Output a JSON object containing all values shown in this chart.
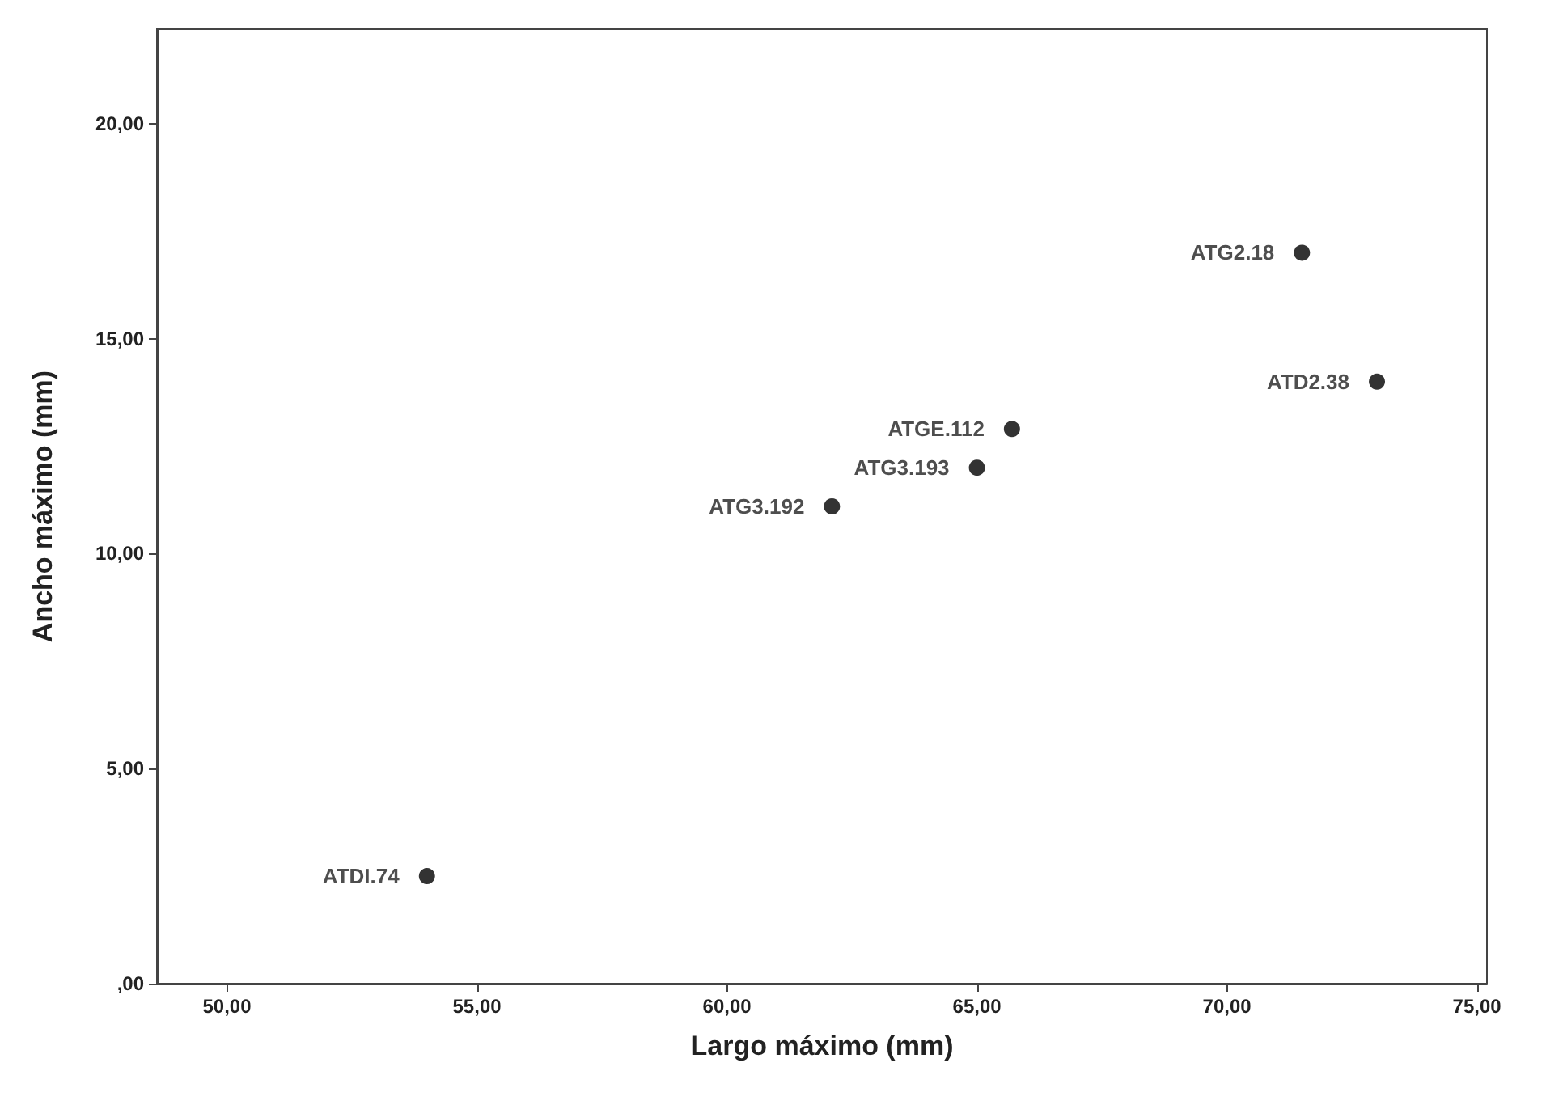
{
  "chart_data": {
    "type": "scatter",
    "xlabel": "Largo máximo (mm)",
    "ylabel": "Ancho máximo (mm)",
    "x": [
      54.0,
      62.1,
      65.0,
      65.7,
      71.5,
      73.0
    ],
    "values": [
      2.5,
      11.1,
      12.0,
      12.9,
      17.0,
      14.0
    ],
    "color": "#000000",
    "marker": "circle",
    "grid": false,
    "xlim": [
      48.6,
      75.2
    ],
    "xticks": [
      {
        "value": 50,
        "label": "50,00"
      },
      {
        "value": 55,
        "label": "55,00"
      },
      {
        "value": 60,
        "label": "60,00"
      },
      {
        "value": 65,
        "label": "65,00"
      },
      {
        "value": 70,
        "label": "70,00"
      },
      {
        "value": 75,
        "label": "75,00"
      }
    ],
    "ylim": [
      0,
      22.2
    ],
    "yticks": [
      {
        "value": 0,
        "label": ",00"
      },
      {
        "value": 5,
        "label": "5,00"
      },
      {
        "value": 10,
        "label": "10,00"
      },
      {
        "value": 15,
        "label": "15,00"
      },
      {
        "value": 20,
        "label": "20,00"
      }
    ],
    "annotations": [
      {
        "text": "ATDI.74",
        "x": 54.0,
        "y": 2.5
      },
      {
        "text": "ATG3.192",
        "x": 62.1,
        "y": 11.1
      },
      {
        "text": "ATG3.193",
        "x": 65.0,
        "y": 12.0
      },
      {
        "text": "ATGE.112",
        "x": 65.7,
        "y": 12.9
      },
      {
        "text": "ATG2.18",
        "x": 71.5,
        "y": 17.0
      },
      {
        "text": "ATD2.38",
        "x": 73.0,
        "y": 14.0
      }
    ]
  }
}
